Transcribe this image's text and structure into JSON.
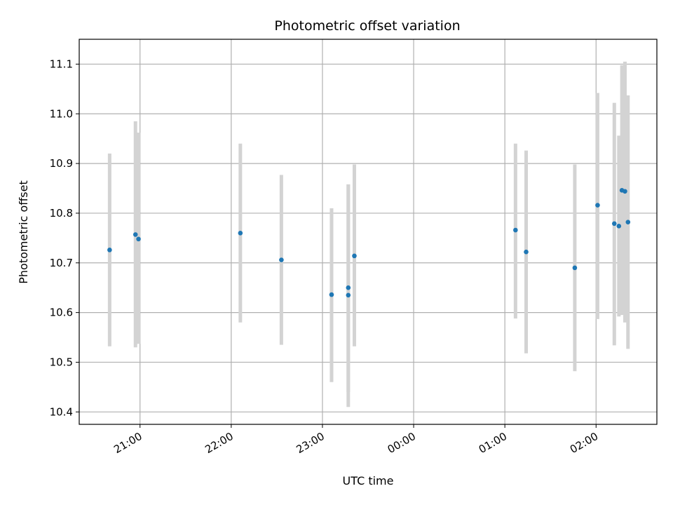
{
  "chart_data": {
    "type": "scatter",
    "title": "Photometric offset variation",
    "xlabel": "UTC time",
    "ylabel": "Photometric offset",
    "x_axis": "time",
    "xlim": [
      "20:20",
      "02:40"
    ],
    "ylim": [
      10.375,
      11.15
    ],
    "x_ticks": [
      "21:00",
      "22:00",
      "23:00",
      "00:00",
      "01:00",
      "02:00"
    ],
    "y_ticks": [
      10.4,
      10.5,
      10.6,
      10.7,
      10.8,
      10.9,
      11.0,
      11.1
    ],
    "y_tick_labels": [
      "10.4",
      "10.5",
      "10.6",
      "10.7",
      "10.8",
      "10.9",
      "11.0",
      "11.1"
    ],
    "grid": true,
    "marker_color": "#1f77b4",
    "errorbar_color": "#d3d3d3",
    "points": [
      {
        "t": "20:40",
        "y": 10.726,
        "ylo": 10.532,
        "yhi": 10.92
      },
      {
        "t": "20:57",
        "y": 10.757,
        "ylo": 10.53,
        "yhi": 10.985
      },
      {
        "t": "20:59",
        "y": 10.748,
        "ylo": 10.537,
        "yhi": 10.962
      },
      {
        "t": "22:06",
        "y": 10.76,
        "ylo": 10.58,
        "yhi": 10.94
      },
      {
        "t": "22:33",
        "y": 10.706,
        "ylo": 10.535,
        "yhi": 10.877
      },
      {
        "t": "23:06",
        "y": 10.636,
        "ylo": 10.46,
        "yhi": 10.81
      },
      {
        "t": "23:17",
        "y": 10.65,
        "ylo": 10.44,
        "yhi": 10.858
      },
      {
        "t": "23:17",
        "y": 10.635,
        "ylo": 10.41,
        "yhi": 10.858
      },
      {
        "t": "23:21",
        "y": 10.714,
        "ylo": 10.532,
        "yhi": 10.898
      },
      {
        "t": "01:07",
        "y": 10.766,
        "ylo": 10.588,
        "yhi": 10.94
      },
      {
        "t": "01:14",
        "y": 10.722,
        "ylo": 10.518,
        "yhi": 10.926
      },
      {
        "t": "01:46",
        "y": 10.69,
        "ylo": 10.482,
        "yhi": 10.898
      },
      {
        "t": "02:01",
        "y": 10.816,
        "ylo": 10.587,
        "yhi": 11.042
      },
      {
        "t": "02:12",
        "y": 10.779,
        "ylo": 10.534,
        "yhi": 11.022
      },
      {
        "t": "02:15",
        "y": 10.774,
        "ylo": 10.592,
        "yhi": 10.956
      },
      {
        "t": "02:17",
        "y": 10.846,
        "ylo": 10.595,
        "yhi": 11.098
      },
      {
        "t": "02:19",
        "y": 10.844,
        "ylo": 10.58,
        "yhi": 11.105
      },
      {
        "t": "02:21",
        "y": 10.782,
        "ylo": 10.527,
        "yhi": 11.037
      }
    ]
  }
}
